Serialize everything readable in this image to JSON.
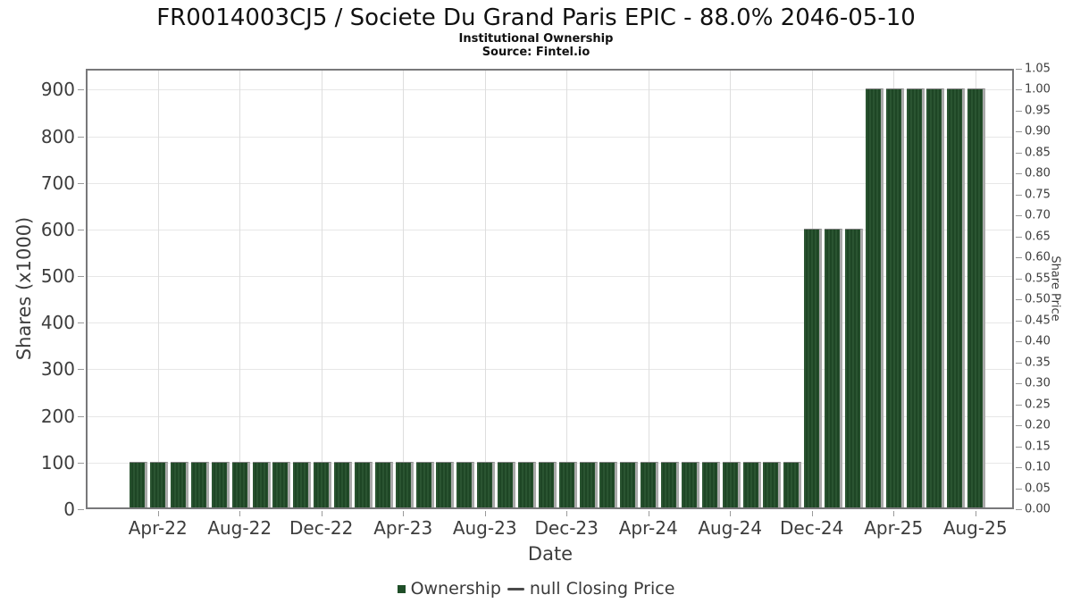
{
  "header": {
    "title": "FR0014003CJ5 / Societe Du Grand Paris EPIC - 88.0% 2046-05-10",
    "subtitle": "Institutional Ownership",
    "source": "Source: Fintel.io"
  },
  "chart_data": {
    "type": "bar",
    "title": "FR0014003CJ5 / Societe Du Grand Paris EPIC - 88.0% 2046-05-10",
    "subtitle": "Institutional Ownership",
    "source": "Source: Fintel.io",
    "xlabel": "Date",
    "ylabel_left": "Shares (x1000)",
    "ylabel_right": "Share Price",
    "categories": [
      "Mar-22",
      "Apr-22",
      "May-22",
      "Jun-22",
      "Jul-22",
      "Aug-22",
      "Sep-22",
      "Oct-22",
      "Nov-22",
      "Dec-22",
      "Jan-23",
      "Feb-23",
      "Mar-23",
      "Apr-23",
      "May-23",
      "Jun-23",
      "Jul-23",
      "Aug-23",
      "Sep-23",
      "Oct-23",
      "Nov-23",
      "Dec-23",
      "Jan-24",
      "Feb-24",
      "Mar-24",
      "Apr-24",
      "May-24",
      "Jun-24",
      "Jul-24",
      "Aug-24",
      "Sep-24",
      "Oct-24",
      "Nov-24",
      "Dec-24",
      "Jan-25",
      "Feb-25",
      "Mar-25",
      "Apr-25",
      "May-25",
      "Jun-25",
      "Jul-25",
      "Aug-25"
    ],
    "series": [
      {
        "name": "Ownership",
        "values": [
          100,
          100,
          100,
          100,
          100,
          100,
          100,
          100,
          100,
          100,
          100,
          100,
          100,
          100,
          100,
          100,
          100,
          100,
          100,
          100,
          100,
          100,
          100,
          100,
          100,
          100,
          100,
          100,
          100,
          100,
          100,
          100,
          100,
          600,
          600,
          600,
          900,
          900,
          900,
          900,
          900,
          900
        ]
      },
      {
        "name": "null Closing Price",
        "values": []
      }
    ],
    "x_tick_labels": [
      "Apr-22",
      "Aug-22",
      "Dec-22",
      "Apr-23",
      "Aug-23",
      "Dec-23",
      "Apr-24",
      "Aug-24",
      "Dec-24",
      "Apr-25",
      "Aug-25"
    ],
    "left_ticks": [
      0,
      100,
      200,
      300,
      400,
      500,
      600,
      700,
      800,
      900
    ],
    "right_ticks": [
      0.0,
      0.05,
      0.1,
      0.15,
      0.2,
      0.25,
      0.3,
      0.35,
      0.4,
      0.45,
      0.5,
      0.55,
      0.6,
      0.65,
      0.7,
      0.75,
      0.8,
      0.85,
      0.9,
      0.95,
      1.0,
      1.05
    ],
    "ylim_left": [
      0,
      945
    ],
    "ylim_right": [
      0,
      1.05
    ],
    "grid": true,
    "legend_position": "bottom",
    "bar_color": "#2a5431",
    "bar_stripe_color": "#1e4625",
    "bar_edge_color": "#a9a9a9"
  },
  "legend": {
    "items": [
      {
        "label": "Ownership",
        "marker": "square",
        "color": "#1f4e28"
      },
      {
        "label": "null Closing Price",
        "marker": "dash",
        "color": "#4a4a4a"
      }
    ]
  }
}
